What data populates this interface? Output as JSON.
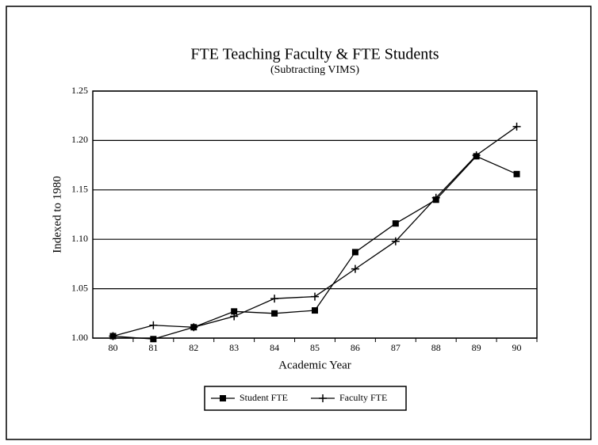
{
  "chart_data": {
    "type": "line",
    "title": "FTE Teaching Faculty & FTE Students",
    "subtitle": "(Subtracting VIMS)",
    "x_label": "Academic Year",
    "y_label": "Indexed to 1980",
    "categories": [
      "80",
      "81",
      "82",
      "83",
      "84",
      "85",
      "86",
      "87",
      "88",
      "89",
      "90"
    ],
    "series": [
      {
        "name": "Student FTE",
        "color": "#000000",
        "marker": "square",
        "values": [
          1.002,
          0.999,
          1.011,
          1.027,
          1.025,
          1.028,
          1.087,
          1.116,
          1.14,
          1.184,
          1.166
        ]
      },
      {
        "name": "Faculty FTE",
        "color": "#000000",
        "marker": "plus",
        "values": [
          1.002,
          1.013,
          1.011,
          1.022,
          1.04,
          1.042,
          1.07,
          1.098,
          1.142,
          1.185,
          1.214
        ]
      }
    ],
    "ylim": [
      1.0,
      1.25
    ],
    "yticks": [
      {
        "value": 1.0,
        "label": "1.00"
      },
      {
        "value": 1.05,
        "label": "1.05"
      },
      {
        "value": 1.1,
        "label": "1.10"
      },
      {
        "value": 1.15,
        "label": "1.15"
      },
      {
        "value": 1.2,
        "label": "1.20"
      },
      {
        "value": 1.25,
        "label": "1.25"
      }
    ],
    "grid": true,
    "legend": "bottom"
  }
}
